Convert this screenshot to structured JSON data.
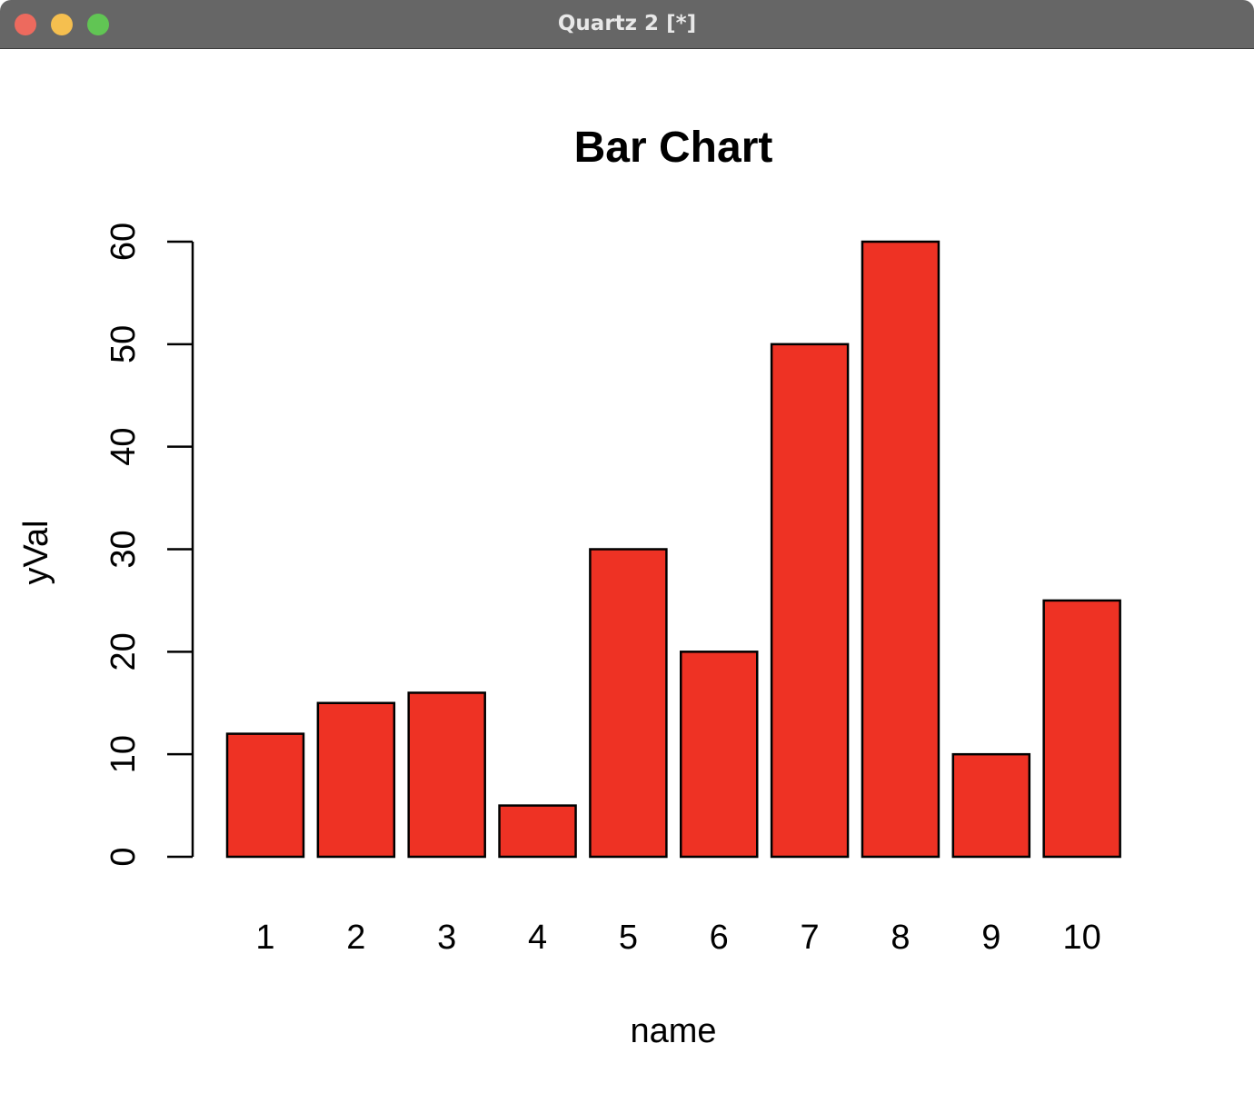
{
  "window": {
    "title": "Quartz 2 [*]",
    "buttons": {
      "close_color": "#ED6A5E",
      "minimize_color": "#F5BF4F",
      "zoom_color": "#61C554"
    }
  },
  "chart_data": {
    "type": "bar",
    "title": "Bar Chart",
    "xlabel": "name",
    "ylabel": "yVal",
    "categories": [
      "1",
      "2",
      "3",
      "4",
      "5",
      "6",
      "7",
      "8",
      "9",
      "10"
    ],
    "values": [
      12,
      15,
      16,
      5,
      30,
      20,
      50,
      60,
      10,
      25
    ],
    "ylim": [
      0,
      60
    ],
    "yticks": [
      "0",
      "10",
      "20",
      "30",
      "40",
      "50",
      "60"
    ],
    "bar_color": "#EE3224",
    "bar_border_color": "#000000",
    "grid": false,
    "legend": "none"
  }
}
